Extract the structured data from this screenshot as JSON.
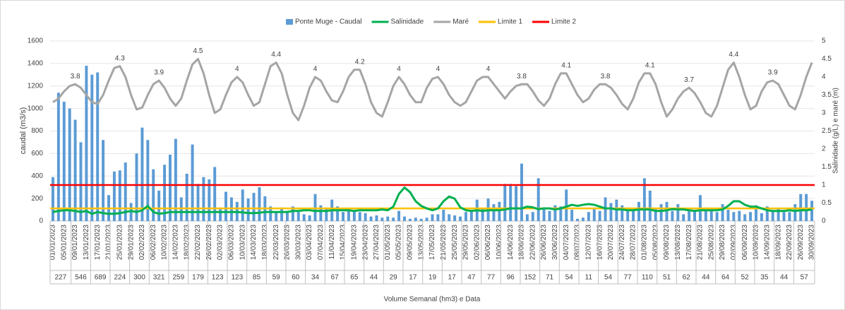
{
  "chart_data": {
    "type": "combo",
    "y_title": "caudal (m3/s)",
    "y2_title": "Salinidade (g/L) e maré (m)",
    "x_title": "Volume Semanal (hm3) e Data",
    "ylim": [
      0,
      1600
    ],
    "yticks": [
      0,
      200,
      400,
      600,
      800,
      1000,
      1200,
      1400,
      1600
    ],
    "y2lim": [
      0,
      5
    ],
    "y2ticks": [
      0,
      0.5,
      1,
      1.5,
      2,
      2.5,
      3,
      3.5,
      4,
      4.5,
      5
    ],
    "grid": true,
    "legend": "top",
    "categories": [
      "01/01/2023",
      null,
      "05/01/2023",
      null,
      "09/01/2023",
      null,
      "13/01/2023",
      null,
      "17/01/2023",
      null,
      "21/01/2023",
      null,
      "25/01/2023",
      null,
      "29/01/2023",
      null,
      "02/02/2023",
      null,
      "06/02/2023",
      null,
      "10/02/2023",
      null,
      "14/02/2023",
      null,
      "18/02/2023",
      null,
      "22/02/2023",
      null,
      "26/02/2023",
      null,
      "02/03/2023",
      null,
      "06/03/2023",
      null,
      "10/03/2023",
      null,
      "14/03/2023",
      null,
      "18/03/2023",
      null,
      "22/03/2023",
      null,
      "26/03/2023",
      null,
      "30/03/2023",
      null,
      "03/04/2023",
      null,
      "07/04/2023",
      null,
      "11/04/2023",
      null,
      "15/04/2023",
      null,
      "19/04/2023",
      null,
      "23/04/2023",
      null,
      "27/04/2023",
      null,
      "01/05/2023",
      null,
      "05/05/2023",
      null,
      "09/05/2023",
      null,
      "13/05/2023",
      null,
      "17/05/2023",
      null,
      "21/05/2023",
      null,
      "25/05/2023",
      null,
      "29/05/2023",
      null,
      "02/06/2023",
      null,
      "06/06/2023",
      null,
      "10/06/2023",
      null,
      "14/06/2023",
      null,
      "18/06/2023",
      null,
      "22/06/2023",
      null,
      "26/06/2023",
      null,
      "30/06/2023",
      null,
      "04/07/2023",
      null,
      "08/07/2023",
      null,
      "12/07/2023",
      null,
      "16/07/2023",
      null,
      "20/07/2023",
      null,
      "24/07/2023",
      null,
      "28/07/2023",
      null,
      "01/08/2023",
      null,
      "05/08/2023",
      null,
      "09/08/2023",
      null,
      "13/08/2023",
      null,
      "17/08/2023",
      null,
      "21/08/2023",
      null,
      "25/08/2023",
      null,
      "29/08/2023",
      null,
      "02/09/2023",
      null,
      "06/09/2023",
      null,
      "10/09/2023",
      null,
      "14/09/2023",
      null,
      "18/09/2023",
      null,
      "22/09/2023",
      null,
      "26/09/2023",
      null,
      "30/09/2023"
    ],
    "weekly_volumes": [
      227,
      546,
      689,
      224,
      300,
      321,
      259,
      179,
      123,
      123,
      85,
      59,
      60,
      34,
      67,
      65,
      44,
      29,
      17,
      19,
      17,
      47,
      77,
      96,
      152,
      71,
      54,
      11,
      54,
      77,
      110,
      51,
      62,
      44,
      64,
      52,
      35,
      44,
      57
    ],
    "series": [
      {
        "name": "Ponte Muge - Caudal",
        "type": "bar",
        "color": "#5b9bd5",
        "values": [
          390,
          1140,
          1060,
          1000,
          900,
          700,
          1380,
          1300,
          1320,
          720,
          230,
          440,
          450,
          520,
          160,
          600,
          830,
          720,
          460,
          270,
          500,
          590,
          730,
          210,
          420,
          680,
          330,
          390,
          370,
          480,
          120,
          260,
          210,
          170,
          280,
          200,
          250,
          300,
          220,
          130,
          80,
          120,
          90,
          130,
          80,
          60,
          50,
          240,
          140,
          120,
          190,
          130,
          80,
          90,
          90,
          80,
          70,
          40,
          50,
          30,
          40,
          30,
          90,
          40,
          20,
          30,
          20,
          30,
          60,
          60,
          100,
          60,
          50,
          40,
          80,
          100,
          190,
          110,
          200,
          150,
          170,
          330,
          330,
          310,
          510,
          60,
          80,
          380,
          120,
          90,
          140,
          130,
          280,
          100,
          20,
          30,
          80,
          120,
          90,
          210,
          160,
          190,
          140,
          120,
          100,
          170,
          380,
          270,
          110,
          150,
          170,
          90,
          150,
          60,
          90,
          100,
          230,
          120,
          90,
          80,
          150,
          100,
          80,
          90,
          60,
          80,
          140,
          70,
          130,
          90,
          110,
          80,
          80,
          150,
          240,
          240,
          180
        ]
      },
      {
        "name": "Salinidade",
        "type": "line",
        "axis": "y2",
        "color": "#00b050",
        "values": [
          0.25,
          0.28,
          0.3,
          0.3,
          0.28,
          0.25,
          0.28,
          0.2,
          0.25,
          0.22,
          0.2,
          0.2,
          0.22,
          0.25,
          0.28,
          0.25,
          0.3,
          0.42,
          0.25,
          0.2,
          0.22,
          0.25,
          0.25,
          0.25,
          0.25,
          0.25,
          0.25,
          0.25,
          0.25,
          0.25,
          0.25,
          0.25,
          0.25,
          0.25,
          0.24,
          0.22,
          0.22,
          0.23,
          0.25,
          0.25,
          0.25,
          0.25,
          0.25,
          0.28,
          0.28,
          0.3,
          0.3,
          0.28,
          0.28,
          0.28,
          0.3,
          0.3,
          0.3,
          0.3,
          0.28,
          0.3,
          0.3,
          0.3,
          0.3,
          0.32,
          0.3,
          0.4,
          0.75,
          0.93,
          0.8,
          0.55,
          0.42,
          0.35,
          0.3,
          0.35,
          0.55,
          0.68,
          0.62,
          0.38,
          0.3,
          0.28,
          0.3,
          0.28,
          0.3,
          0.3,
          0.3,
          0.32,
          0.35,
          0.35,
          0.35,
          0.4,
          0.38,
          0.33,
          0.35,
          0.35,
          0.32,
          0.35,
          0.4,
          0.45,
          0.42,
          0.45,
          0.47,
          0.45,
          0.4,
          0.35,
          0.35,
          0.32,
          0.32,
          0.3,
          0.3,
          0.32,
          0.32,
          0.32,
          0.28,
          0.28,
          0.3,
          0.33,
          0.32,
          0.32,
          0.3,
          0.28,
          0.3,
          0.3,
          0.3,
          0.3,
          0.32,
          0.42,
          0.55,
          0.55,
          0.45,
          0.4,
          0.4,
          0.35,
          0.3,
          0.28,
          0.28,
          0.28,
          0.3,
          0.28,
          0.3,
          0.3,
          0.32
        ]
      },
      {
        "name": "Maré",
        "type": "line",
        "axis": "y2",
        "color": "#a5a5a5",
        "values": [
          3.3,
          3.4,
          3.6,
          3.75,
          3.8,
          3.7,
          3.5,
          3.3,
          3.25,
          3.5,
          3.9,
          4.25,
          4.3,
          4.0,
          3.5,
          3.1,
          3.15,
          3.5,
          3.8,
          3.9,
          3.7,
          3.4,
          3.2,
          3.4,
          3.9,
          4.35,
          4.5,
          4.1,
          3.5,
          3.0,
          3.1,
          3.5,
          3.85,
          4.0,
          3.85,
          3.5,
          3.2,
          3.3,
          3.8,
          4.3,
          4.4,
          4.1,
          3.5,
          3.0,
          2.8,
          3.2,
          3.7,
          4.0,
          3.9,
          3.6,
          3.35,
          3.3,
          3.6,
          4.0,
          4.2,
          4.2,
          3.8,
          3.3,
          3.0,
          2.9,
          3.3,
          3.75,
          4.0,
          3.8,
          3.5,
          3.3,
          3.3,
          3.7,
          3.95,
          4.0,
          3.8,
          3.5,
          3.3,
          3.2,
          3.3,
          3.6,
          3.9,
          4.0,
          4.0,
          3.8,
          3.6,
          3.4,
          3.6,
          3.75,
          3.8,
          3.8,
          3.6,
          3.35,
          3.2,
          3.4,
          3.8,
          4.1,
          4.1,
          3.8,
          3.5,
          3.3,
          3.4,
          3.65,
          3.8,
          3.8,
          3.7,
          3.5,
          3.25,
          3.1,
          3.4,
          3.85,
          4.1,
          4.1,
          3.8,
          3.3,
          2.9,
          3.1,
          3.4,
          3.6,
          3.7,
          3.55,
          3.3,
          3.0,
          2.9,
          3.2,
          3.7,
          4.2,
          4.4,
          4.0,
          3.5,
          3.1,
          3.2,
          3.6,
          3.85,
          3.9,
          3.8,
          3.5,
          3.2,
          3.1,
          3.5,
          4.0,
          4.4
        ],
        "value_labels": [
          null,
          null,
          null,
          null,
          "3.8",
          null,
          null,
          null,
          null,
          null,
          null,
          null,
          "4.3",
          null,
          null,
          null,
          null,
          null,
          null,
          "3.9",
          null,
          null,
          null,
          null,
          null,
          null,
          "4.5",
          null,
          null,
          null,
          null,
          null,
          null,
          "4",
          null,
          null,
          null,
          null,
          null,
          null,
          "4.4",
          null,
          null,
          null,
          null,
          null,
          null,
          "4",
          null,
          null,
          null,
          null,
          null,
          null,
          null,
          "4.2",
          null,
          null,
          null,
          null,
          null,
          null,
          "4",
          null,
          null,
          null,
          null,
          null,
          null,
          "4",
          null,
          null,
          null,
          null,
          null,
          null,
          null,
          null,
          "4",
          null,
          null,
          null,
          null,
          null,
          "3.8",
          null,
          null,
          null,
          null,
          null,
          null,
          null,
          "4.1",
          null,
          null,
          null,
          null,
          null,
          null,
          "3.8",
          null,
          null,
          null,
          null,
          null,
          null,
          null,
          "4.1",
          null,
          null,
          null,
          null,
          null,
          null,
          "3.7",
          null,
          null,
          null,
          null,
          null,
          null,
          null,
          "4.4",
          null,
          null,
          null,
          null,
          null,
          null,
          "3.9",
          null,
          null,
          null,
          null,
          null,
          null,
          null
        ]
      },
      {
        "name": "Limite 1",
        "type": "hline",
        "axis": "y2",
        "color": "#ffc000",
        "value": 0.35
      },
      {
        "name": "Limite 2",
        "type": "hline",
        "axis": "y2",
        "color": "#ff0000",
        "value": 1
      }
    ]
  }
}
